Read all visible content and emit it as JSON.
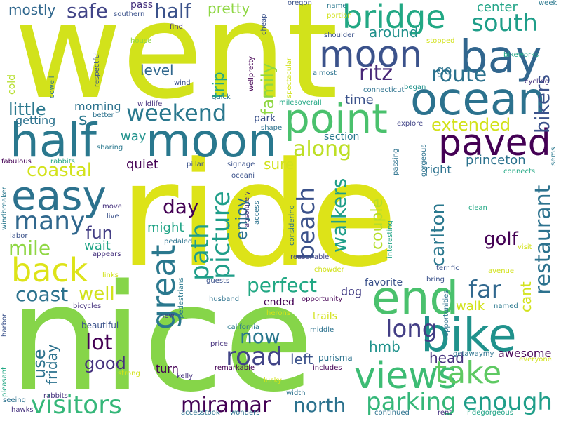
{
  "words": [
    {
      "text": "went",
      "color": "#d2e21b"
    },
    {
      "text": "ride",
      "color": "#dde318"
    },
    {
      "text": "nice",
      "color": "#86d549"
    },
    {
      "text": "moon",
      "color": "#29788e"
    },
    {
      "text": "half",
      "color": "#2a788e"
    },
    {
      "text": "bike",
      "color": "#20928c"
    },
    {
      "text": "point",
      "color": "#4ac16d"
    },
    {
      "text": "paved",
      "color": "#440154"
    },
    {
      "text": "bay",
      "color": "#31668e"
    },
    {
      "text": "ocean",
      "color": "#2c728e"
    },
    {
      "text": "views",
      "color": "#3dbc74"
    },
    {
      "text": "end",
      "color": "#4ac16d"
    },
    {
      "text": "moon",
      "color": "#3b528b"
    },
    {
      "text": "bridge",
      "color": "#22a884"
    },
    {
      "text": "great",
      "color": "#2a788e"
    },
    {
      "text": "back",
      "color": "#dde318"
    },
    {
      "text": "easy",
      "color": "#2c728e"
    },
    {
      "text": "south",
      "color": "#1f9e89"
    },
    {
      "text": "take",
      "color": "#5ec962"
    },
    {
      "text": "visitors",
      "color": "#35b779"
    },
    {
      "text": "miramar",
      "color": "#440154"
    },
    {
      "text": "parking",
      "color": "#35b779"
    },
    {
      "text": "enough",
      "color": "#1f9e89"
    },
    {
      "text": "long",
      "color": "#433e85"
    },
    {
      "text": "beach",
      "color": "#3b528b"
    },
    {
      "text": "weekend",
      "color": "#2a788e"
    },
    {
      "text": "path",
      "color": "#1f9e89"
    },
    {
      "text": "route",
      "color": "#2c728e"
    },
    {
      "text": "along",
      "color": "#bddf26"
    },
    {
      "text": "restaurant",
      "color": "#2c728e"
    },
    {
      "text": "many",
      "color": "#31688e"
    },
    {
      "text": "picture",
      "color": "#1f9e89"
    },
    {
      "text": "perfect",
      "color": "#22a884"
    },
    {
      "text": "road",
      "color": "#414487"
    },
    {
      "text": "coast",
      "color": "#2c728e"
    },
    {
      "text": "coastal",
      "color": "#d2e21b"
    },
    {
      "text": "mile",
      "color": "#8fd744"
    },
    {
      "text": "far",
      "color": "#31688e"
    },
    {
      "text": "ritz",
      "color": "#482878"
    },
    {
      "text": "safe",
      "color": "#414487"
    },
    {
      "text": "half",
      "color": "#3b528b"
    },
    {
      "text": "walkers",
      "color": "#1f9e89"
    },
    {
      "text": "now",
      "color": "#2a788e"
    },
    {
      "text": "lot",
      "color": "#440154"
    },
    {
      "text": "north",
      "color": "#2c728e"
    },
    {
      "text": "extended",
      "color": "#d2e21b"
    },
    {
      "text": "bikers",
      "color": "#3b528b"
    },
    {
      "text": "carlton",
      "color": "#2a788e"
    },
    {
      "text": "day",
      "color": "#440154"
    },
    {
      "text": "well",
      "color": "#d2e21b"
    },
    {
      "text": "golf",
      "color": "#440154"
    },
    {
      "text": "family",
      "color": "#8fd744"
    },
    {
      "text": "enjoy",
      "color": "#2c728e"
    },
    {
      "text": "couple",
      "color": "#b5de2b"
    },
    {
      "text": "trip",
      "color": "#22a884"
    },
    {
      "text": "little",
      "color": "#2a788e"
    },
    {
      "text": "good",
      "color": "#46327e"
    },
    {
      "text": "use",
      "color": "#2c728e"
    },
    {
      "text": "fun",
      "color": "#433e85"
    },
    {
      "text": "pretty",
      "color": "#8fd744"
    },
    {
      "text": "mostly",
      "color": "#31688e"
    },
    {
      "text": "sure",
      "color": "#d2e21b"
    },
    {
      "text": "level",
      "color": "#31688e"
    },
    {
      "text": "cant",
      "color": "#d2e21b"
    },
    {
      "text": "around",
      "color": "#21918c"
    },
    {
      "text": "hmb",
      "color": "#20928c"
    },
    {
      "text": "friday",
      "color": "#2c728e"
    },
    {
      "text": "left",
      "color": "#3b528b"
    },
    {
      "text": "head",
      "color": "#46327e"
    },
    {
      "text": "center",
      "color": "#20a486"
    },
    {
      "text": "princeton",
      "color": "#2c728e"
    },
    {
      "text": "quiet",
      "color": "#440154"
    },
    {
      "text": "time",
      "color": "#3b528b"
    },
    {
      "text": "getting",
      "color": "#2c728e"
    },
    {
      "text": "way",
      "color": "#20928c"
    },
    {
      "text": "go",
      "color": "#2c728e"
    },
    {
      "text": "might",
      "color": "#20a486"
    },
    {
      "text": "wait",
      "color": "#20a486"
    },
    {
      "text": "walk",
      "color": "#d2e21b"
    },
    {
      "text": "awesome",
      "color": "#440154"
    },
    {
      "text": "morning",
      "color": "#2c728e"
    },
    {
      "text": "s",
      "color": "#2a788e"
    },
    {
      "text": "right",
      "color": "#2c728e"
    },
    {
      "text": "turn",
      "color": "#440154"
    },
    {
      "text": "dog",
      "color": "#433e85"
    },
    {
      "text": "section",
      "color": "#2a788e"
    },
    {
      "text": "park",
      "color": "#3b528b"
    },
    {
      "text": "favorite",
      "color": "#3b528b"
    },
    {
      "text": "cold",
      "color": "#b5de2b"
    },
    {
      "text": "ended",
      "color": "#440154"
    },
    {
      "text": "pass",
      "color": "#46327e"
    },
    {
      "text": "week",
      "color": "#2a788e"
    },
    {
      "text": "name",
      "color": "#2a788e"
    },
    {
      "text": "portion",
      "color": "#d2e21b"
    },
    {
      "text": "oregon",
      "color": "#3b528b"
    },
    {
      "text": "cheap",
      "color": "#3b528b"
    },
    {
      "text": "southern",
      "color": "#3b528b"
    },
    {
      "text": "find",
      "color": "#46327e"
    },
    {
      "text": "house",
      "color": "#8fd744"
    },
    {
      "text": "shoulder",
      "color": "#3b528b"
    },
    {
      "text": "stopped",
      "color": "#d2e21b"
    },
    {
      "text": "bikeworks",
      "color": "#20a486"
    },
    {
      "text": "spectacular",
      "color": "#d2e21b"
    },
    {
      "text": "almost",
      "color": "#2c728e"
    },
    {
      "text": "began",
      "color": "#20928c"
    },
    {
      "text": "cycling",
      "color": "#46327e"
    },
    {
      "text": "connecticut",
      "color": "#2c728e"
    },
    {
      "text": "respectful",
      "color": "#3b528b"
    },
    {
      "text": "cowell",
      "color": "#2c728e"
    },
    {
      "text": "wellpretty",
      "color": "#440154"
    },
    {
      "text": "wind",
      "color": "#3b528b"
    },
    {
      "text": "wildlife",
      "color": "#46327e"
    },
    {
      "text": "quick",
      "color": "#2a788e"
    },
    {
      "text": "milesoverall",
      "color": "#22a884"
    },
    {
      "text": "explore",
      "color": "#414487"
    },
    {
      "text": "better",
      "color": "#2c728e"
    },
    {
      "text": "shape",
      "color": "#2c728e"
    },
    {
      "text": "sharing",
      "color": "#2a788e"
    },
    {
      "text": "fabulous",
      "color": "#440154"
    },
    {
      "text": "rabbits",
      "color": "#20a486"
    },
    {
      "text": "pillar",
      "color": "#3b528b"
    },
    {
      "text": "signage",
      "color": "#3b528b"
    },
    {
      "text": "oceani",
      "color": "#3b528b"
    },
    {
      "text": "passing",
      "color": "#2c728e"
    },
    {
      "text": "gorgeous",
      "color": "#2c728e"
    },
    {
      "text": "connects",
      "color": "#22a884"
    },
    {
      "text": "sems",
      "color": "#2a788e"
    },
    {
      "text": "windbreaker",
      "color": "#2a788e"
    },
    {
      "text": "labor",
      "color": "#3b528b"
    },
    {
      "text": "move",
      "color": "#46327e"
    },
    {
      "text": "live",
      "color": "#3b528b"
    },
    {
      "text": "absolutely",
      "color": "#46327e"
    },
    {
      "text": "access",
      "color": "#2c728e"
    },
    {
      "text": "considering",
      "color": "#2c728e"
    },
    {
      "text": "interesting",
      "color": "#20a486"
    },
    {
      "text": "clean",
      "color": "#22a884"
    },
    {
      "text": "visit",
      "color": "#d2e21b"
    },
    {
      "text": "pedaled",
      "color": "#2c728e"
    },
    {
      "text": "appears",
      "color": "#46327e"
    },
    {
      "text": "reasonable",
      "color": "#414487"
    },
    {
      "text": "chowder",
      "color": "#d2e21b"
    },
    {
      "text": "terrific",
      "color": "#3b528b"
    },
    {
      "text": "avenue",
      "color": "#d2e21b"
    },
    {
      "text": "links",
      "color": "#d2e21b"
    },
    {
      "text": "pedestrians",
      "color": "#2a788e"
    },
    {
      "text": "guests",
      "color": "#3b528b"
    },
    {
      "text": "bring",
      "color": "#3b528b"
    },
    {
      "text": "opportunity",
      "color": "#440154"
    },
    {
      "text": "opportunities",
      "color": "#2c728e"
    },
    {
      "text": "harbor",
      "color": "#3b528b"
    },
    {
      "text": "bicycles",
      "color": "#46327e"
    },
    {
      "text": "husband",
      "color": "#2c728e"
    },
    {
      "text": "herons",
      "color": "#d2e21b"
    },
    {
      "text": "named",
      "color": "#2a788e"
    },
    {
      "text": "new",
      "color": "#46327e"
    },
    {
      "text": "trails",
      "color": "#d2e21b"
    },
    {
      "text": "beautiful",
      "color": "#3b528b"
    },
    {
      "text": "california",
      "color": "#2a788e"
    },
    {
      "text": "middle",
      "color": "#2c728e"
    },
    {
      "text": "getawaymy",
      "color": "#2c728e"
    },
    {
      "text": "everyone",
      "color": "#d2e21b"
    },
    {
      "text": "price",
      "color": "#46327e"
    },
    {
      "text": "purisma",
      "color": "#2c728e"
    },
    {
      "text": "remarkable",
      "color": "#440154"
    },
    {
      "text": "includes",
      "color": "#440154"
    },
    {
      "text": "pleasant",
      "color": "#22a884"
    },
    {
      "text": "strong",
      "color": "#d2e21b"
    },
    {
      "text": "kelly",
      "color": "#46327e"
    },
    {
      "text": "lucky",
      "color": "#d2e21b"
    },
    {
      "text": "rabbits",
      "color": "#46327e"
    },
    {
      "text": "seeing",
      "color": "#2c728e"
    },
    {
      "text": "hawks",
      "color": "#46327e"
    },
    {
      "text": "accesstook",
      "color": "#2c728e"
    },
    {
      "text": "wonders",
      "color": "#2c728e"
    },
    {
      "text": "width",
      "color": "#2c728e"
    },
    {
      "text": "continued",
      "color": "#2c728e"
    },
    {
      "text": "rent",
      "color": "#46327e"
    },
    {
      "text": "ridegorgeous",
      "color": "#20a486"
    }
  ]
}
